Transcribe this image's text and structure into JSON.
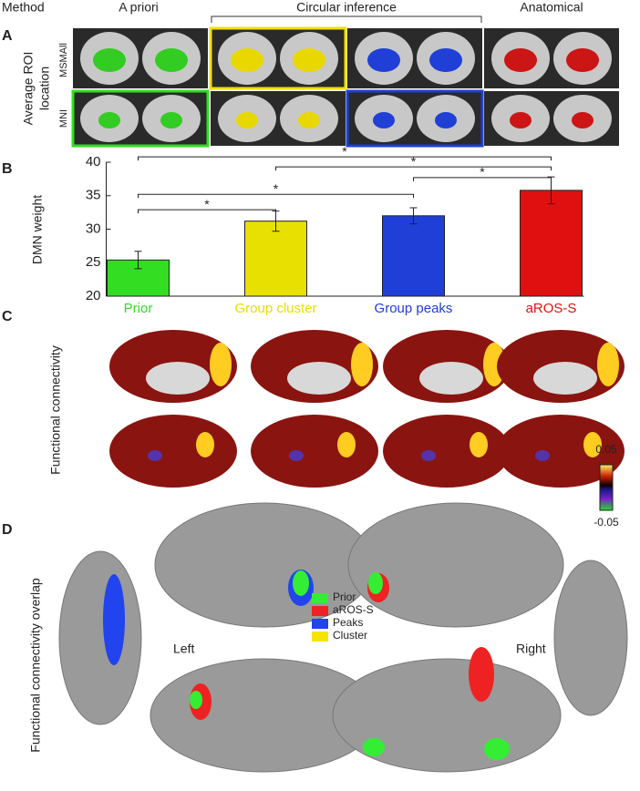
{
  "header": {
    "method": "Method",
    "a_priori": "A priori",
    "circular": "Circular inference",
    "anatomical": "Anatomical"
  },
  "panel_letters": [
    "A",
    "B",
    "C",
    "D"
  ],
  "panel_a": {
    "ylabel": [
      "Average ROI",
      "location"
    ],
    "rows": [
      "MSMAll",
      "MNI"
    ]
  },
  "chart_data": {
    "type": "bar",
    "ylabel": "DMN weight",
    "categories": [
      "Prior",
      "Group cluster",
      "Group peaks",
      "aROS-S"
    ],
    "values": [
      25.4,
      31.2,
      32.0,
      35.8
    ],
    "errors": [
      1.3,
      1.5,
      1.2,
      2.0
    ],
    "colors": [
      "#33dd22",
      "#e8e000",
      "#1f3fd6",
      "#e01010"
    ],
    "ylim": [
      20,
      40
    ],
    "yticks": [
      20,
      25,
      30,
      35,
      40
    ],
    "brackets": [
      {
        "pair": [
          "Prior",
          "aROS-S"
        ],
        "y": 40.8,
        "label": "*"
      },
      {
        "pair": [
          "Group cluster",
          "aROS-S"
        ],
        "y": 39.3,
        "label": "*"
      },
      {
        "pair": [
          "Group peaks",
          "aROS-S"
        ],
        "y": 37.7,
        "label": "*"
      },
      {
        "pair": [
          "Prior",
          "Group peaks"
        ],
        "y": 35.2,
        "label": "*"
      },
      {
        "pair": [
          "Prior",
          "Group cluster"
        ],
        "y": 32.9,
        "label": "*"
      }
    ]
  },
  "panel_c": {
    "ylabel": "Functional connectivity",
    "colorbar": {
      "ylim": [
        -0.05,
        0.05
      ],
      "yticks": [
        -0.05,
        0.05
      ]
    }
  },
  "panel_d": {
    "ylabel": "Functional connectivity overlap",
    "sides": [
      "Left",
      "Right"
    ],
    "legend": [
      {
        "name": "Prior",
        "color": "#33ee33"
      },
      {
        "name": "aROS-S",
        "color": "#ee2222"
      },
      {
        "name": "Peaks",
        "color": "#2244ee"
      },
      {
        "name": "Cluster",
        "color": "#f5e400"
      }
    ]
  }
}
